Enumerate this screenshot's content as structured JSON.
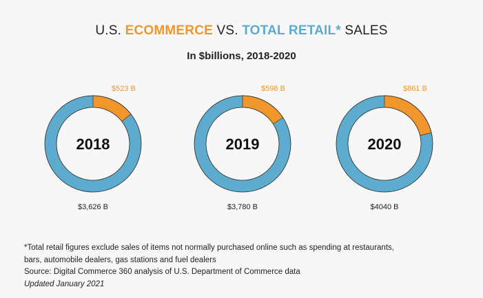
{
  "title": {
    "pre": "U.S.",
    "ecommerce": "ECOMMERCE",
    "mid": "VS.",
    "retail": "TOTAL RETAIL*",
    "post": "SALES"
  },
  "subtitle": "In $billions, 2018-2020",
  "colors": {
    "ecommerce": "#f0962b",
    "retail": "#5dabcf",
    "center": "#f7f7f7"
  },
  "chart_data": {
    "type": "pie",
    "title": "U.S. ECOMMERCE VS. TOTAL RETAIL* SALES",
    "subtitle": "In $billions, 2018-2020",
    "charts": [
      {
        "year": "2018",
        "ecommerce": 523,
        "total_retail": 3626,
        "ecommerce_label": "$523 B",
        "retail_label": "$3,626 B"
      },
      {
        "year": "2019",
        "ecommerce": 598,
        "total_retail": 3780,
        "ecommerce_label": "$598 B",
        "retail_label": "$3,780 B"
      },
      {
        "year": "2020",
        "ecommerce": 861,
        "total_retail": 4040,
        "ecommerce_label": "$861 B",
        "retail_label": "$4040 B"
      }
    ]
  },
  "footnote": {
    "line1": "*Total retail figures exclude sales of items not normally purchased online such as spending at restaurants,",
    "line2": "bars, automobile dealers, gas stations and fuel dealers",
    "source": "Source: Digital Commerce 360 analysis of U.S. Department of Commerce data",
    "updated": "Updated January 2021"
  }
}
